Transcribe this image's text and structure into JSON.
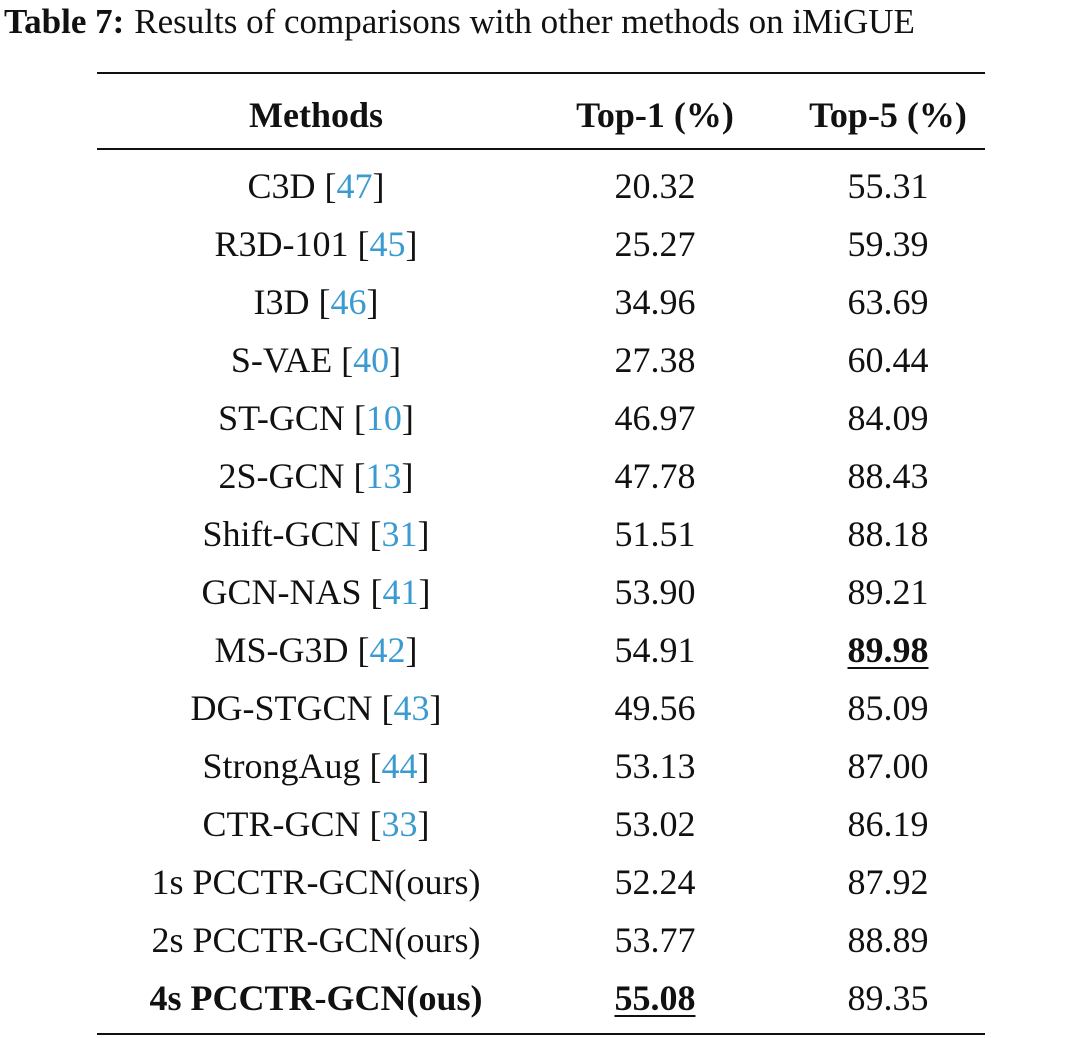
{
  "caption": {
    "label": "Table 7:",
    "text": "Results of comparisons with other methods on iMiGUE"
  },
  "table": {
    "headers": [
      "Methods",
      "Top-1 (%)",
      "Top-5 (%)"
    ],
    "rows": [
      {
        "method": [
          "C3D [",
          "47",
          "]"
        ],
        "top1": "20.32",
        "top5": "55.31"
      },
      {
        "method": [
          "R3D-101 [",
          "45",
          "]"
        ],
        "top1": "25.27",
        "top5": "59.39"
      },
      {
        "method": [
          "I3D [",
          "46",
          "]"
        ],
        "top1": "34.96",
        "top5": "63.69"
      },
      {
        "method": [
          "S-VAE [",
          "40",
          "]"
        ],
        "top1": "27.38",
        "top5": "60.44"
      },
      {
        "method": [
          "ST-GCN [",
          "10",
          "]"
        ],
        "top1": "46.97",
        "top5": "84.09"
      },
      {
        "method": [
          "2S-GCN [",
          "13",
          "]"
        ],
        "top1": "47.78",
        "top5": "88.43"
      },
      {
        "method": [
          "Shift-GCN [",
          "31",
          "]"
        ],
        "top1": "51.51",
        "top5": "88.18"
      },
      {
        "method": [
          "GCN-NAS [",
          "41",
          "]"
        ],
        "top1": "53.90",
        "top5": "89.21"
      },
      {
        "method": [
          "MS-G3D [",
          "42",
          "]"
        ],
        "top1": "54.91",
        "top5": "89.98",
        "best": "top5"
      },
      {
        "method": [
          "DG-STGCN [",
          "43",
          "]"
        ],
        "top1": "49.56",
        "top5": "85.09"
      },
      {
        "method": [
          "StrongAug [",
          "44",
          "]"
        ],
        "top1": "53.13",
        "top5": "87.00"
      },
      {
        "method": [
          "CTR-GCN [",
          "33",
          "]"
        ],
        "top1": "53.02",
        "top5": "86.19"
      },
      {
        "method": [
          "1s PCCTR-GCN(ours)"
        ],
        "top1": "52.24",
        "top5": "87.92"
      },
      {
        "method": [
          "2s PCCTR-GCN(ours)"
        ],
        "top1": "53.77",
        "top5": "88.89"
      },
      {
        "method": [
          "4s PCCTR-GCN(ous)"
        ],
        "top1": "55.08",
        "top5": "89.35",
        "best": "top1",
        "bold": true
      }
    ]
  }
}
